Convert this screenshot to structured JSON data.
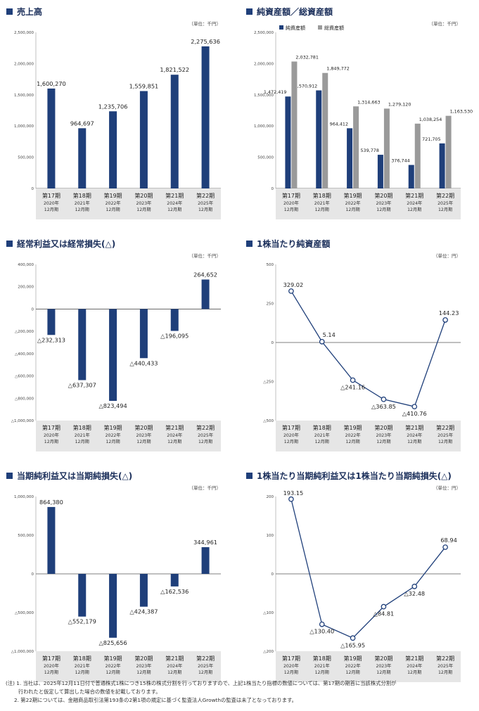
{
  "charts": [
    {
      "id": "sales",
      "title": "売上高",
      "unit": "（単位：千円）",
      "chart_data": {
        "type": "bar",
        "title": "売上高",
        "categories": [
          "第17期",
          "第18期",
          "第19期",
          "第20期",
          "第21期",
          "第22期"
        ],
        "sublabels": [
          [
            "2020年",
            "12月期"
          ],
          [
            "2021年",
            "12月期"
          ],
          [
            "2022年",
            "12月期"
          ],
          [
            "2023年",
            "12月期"
          ],
          [
            "2024年",
            "12月期"
          ],
          [
            "2025年",
            "12月期"
          ]
        ],
        "series": [
          {
            "name": "売上高",
            "color": "#1f3f7a",
            "values": [
              1600270,
              964697,
              1235706,
              1559851,
              1821522,
              2275636
            ]
          }
        ],
        "value_labels": [
          "1,600,270",
          "964,697",
          "1,235,706",
          "1,559,851",
          "1,821,522",
          "2,275,636"
        ],
        "ylim": [
          0,
          2500000
        ],
        "yticks": [
          0,
          500000,
          1000000,
          1500000,
          2000000,
          2500000
        ],
        "ytick_labels": [
          "0",
          "500,000",
          "1,000,000",
          "1,500,000",
          "2,000,000",
          "2,500,000"
        ]
      }
    },
    {
      "id": "assets",
      "title": "純資産額／総資産額",
      "unit": "（単位：千円）",
      "chart_data": {
        "type": "bar",
        "title": "純資産額／総資産額",
        "categories": [
          "第17期",
          "第18期",
          "第19期",
          "第20期",
          "第21期",
          "第22期"
        ],
        "sublabels": [
          [
            "2020年",
            "12月期"
          ],
          [
            "2021年",
            "12月期"
          ],
          [
            "2022年",
            "12月期"
          ],
          [
            "2023年",
            "12月期"
          ],
          [
            "2024年",
            "12月期"
          ],
          [
            "2025年",
            "12月期"
          ]
        ],
        "series": [
          {
            "name": "純資産額",
            "color": "#1f3f7a",
            "values": [
              1472419,
              1570912,
              964412,
              539778,
              376744,
              721705
            ],
            "labels": [
              "1,472,419",
              "1,570,912",
              "964,412",
              "539,778",
              "376,744",
              "721,705"
            ]
          },
          {
            "name": "総資産額",
            "color": "#9a9a9a",
            "values": [
              2032781,
              1849772,
              1314663,
              1279120,
              1038254,
              1163530
            ],
            "labels": [
              "2,032,781",
              "1,849,772",
              "1,314,663",
              "1,279,120",
              "1,038,254",
              "1,163,530"
            ]
          }
        ],
        "legend": "top-left",
        "ylim": [
          0,
          2500000
        ],
        "yticks": [
          0,
          500000,
          1000000,
          1500000,
          2000000,
          2500000
        ],
        "ytick_labels": [
          "0",
          "500,000",
          "1,000,000",
          "1,500,000",
          "2,000,000",
          "2,500,000"
        ]
      }
    },
    {
      "id": "ordinary",
      "title": "経常利益又は経常損失(△)",
      "unit": "（単位：千円）",
      "chart_data": {
        "type": "bar",
        "title": "経常利益又は経常損失(△)",
        "categories": [
          "第17期",
          "第18期",
          "第19期",
          "第20期",
          "第21期",
          "第22期"
        ],
        "sublabels": [
          [
            "2020年",
            "12月期"
          ],
          [
            "2021年",
            "12月期"
          ],
          [
            "2022年",
            "12月期"
          ],
          [
            "2023年",
            "12月期"
          ],
          [
            "2024年",
            "12月期"
          ],
          [
            "2025年",
            "12月期"
          ]
        ],
        "series": [
          {
            "name": "経常利益",
            "color": "#1f3f7a",
            "values": [
              -232313,
              -637307,
              -823494,
              -440433,
              -196095,
              264652
            ]
          }
        ],
        "value_labels": [
          "△232,313",
          "△637,307",
          "△823,494",
          "△440,433",
          "△196,095",
          "264,652"
        ],
        "ylim": [
          -1000000,
          400000
        ],
        "yticks": [
          -1000000,
          -800000,
          -600000,
          -400000,
          -200000,
          0,
          200000,
          400000
        ],
        "ytick_labels": [
          "△1,000,000",
          "△800,000",
          "△600,000",
          "△400,000",
          "△200,000",
          "0",
          "200,000",
          "400,000"
        ]
      }
    },
    {
      "id": "bps",
      "title": "1株当たり純資産額",
      "unit": "（単位：円）",
      "chart_data": {
        "type": "line",
        "title": "1株当たり純資産額",
        "categories": [
          "第17期",
          "第18期",
          "第19期",
          "第20期",
          "第21期",
          "第22期"
        ],
        "sublabels": [
          [
            "2020年",
            "12月期"
          ],
          [
            "2021年",
            "12月期"
          ],
          [
            "2022年",
            "12月期"
          ],
          [
            "2023年",
            "12月期"
          ],
          [
            "2024年",
            "12月期"
          ],
          [
            "2025年",
            "12月期"
          ]
        ],
        "series": [
          {
            "name": "1株当たり純資産額",
            "color": "#1f3f7a",
            "values": [
              329.02,
              5.14,
              -241.16,
              -363.85,
              -410.76,
              144.23
            ]
          }
        ],
        "value_labels": [
          "329.02",
          "5.14",
          "△241.16",
          "△363.85",
          "△410.76",
          "144.23"
        ],
        "ylim": [
          -500,
          500
        ],
        "yticks": [
          -500,
          -250,
          0,
          250,
          500
        ],
        "ytick_labels": [
          "△500",
          "△250",
          "0",
          "250",
          "500"
        ]
      }
    },
    {
      "id": "net",
      "title": "当期純利益又は当期純損失(△)",
      "unit": "（単位：千円）",
      "chart_data": {
        "type": "bar",
        "title": "当期純利益又は当期純損失(△)",
        "categories": [
          "第17期",
          "第18期",
          "第19期",
          "第20期",
          "第21期",
          "第22期"
        ],
        "sublabels": [
          [
            "2020年",
            "12月期"
          ],
          [
            "2021年",
            "12月期"
          ],
          [
            "2022年",
            "12月期"
          ],
          [
            "2023年",
            "12月期"
          ],
          [
            "2024年",
            "12月期"
          ],
          [
            "2025年",
            "12月期"
          ]
        ],
        "series": [
          {
            "name": "当期純利益",
            "color": "#1f3f7a",
            "values": [
              864380,
              -552179,
              -825656,
              -424387,
              -162536,
              344961
            ]
          }
        ],
        "value_labels": [
          "864,380",
          "△552,179",
          "△825,656",
          "△424,387",
          "△162,536",
          "344,961"
        ],
        "ylim": [
          -1000000,
          1000000
        ],
        "yticks": [
          -1000000,
          -500000,
          0,
          500000,
          1000000
        ],
        "ytick_labels": [
          "△1,000,000",
          "△500,000",
          "0",
          "500,000",
          "1,000,000"
        ]
      }
    },
    {
      "id": "eps",
      "title": "1株当たり当期純利益又は1株当たり当期純損失(△)",
      "unit": "（単位：円）",
      "chart_data": {
        "type": "line",
        "title": "1株当たり当期純利益又は1株当たり当期純損失(△)",
        "categories": [
          "第17期",
          "第18期",
          "第19期",
          "第20期",
          "第21期",
          "第22期"
        ],
        "sublabels": [
          [
            "2020年",
            "12月期"
          ],
          [
            "2021年",
            "12月期"
          ],
          [
            "2022年",
            "12月期"
          ],
          [
            "2023年",
            "12月期"
          ],
          [
            "2024年",
            "12月期"
          ],
          [
            "2025年",
            "12月期"
          ]
        ],
        "series": [
          {
            "name": "1株当たり当期純利益",
            "color": "#1f3f7a",
            "values": [
              193.15,
              -130.4,
              -165.95,
              -84.81,
              -32.48,
              68.94
            ]
          }
        ],
        "value_labels": [
          "193.15",
          "△130.40",
          "△165.95",
          "△84.81",
          "△32.48",
          "68.94"
        ],
        "ylim": [
          -200,
          200
        ],
        "yticks": [
          -200,
          -100,
          0,
          100,
          200
        ],
        "ytick_labels": [
          "△200",
          "△100",
          "0",
          "100",
          "200"
        ]
      }
    }
  ],
  "notes": {
    "line1": "(注) 1. 当社は、2025年12月11日付で普通株式1株につき15株の株式分割を行っておりますので、上記1株当たり指標の数値については、第17期の期首に当該株式分割が",
    "line2": "行われたと仮定して算出した場合の数値を記載しております。",
    "line3": "2. 第22期については、金融商品取引法第193条の2第1項の規定に基づく監査法人Growthの監査は未了となっております。"
  }
}
